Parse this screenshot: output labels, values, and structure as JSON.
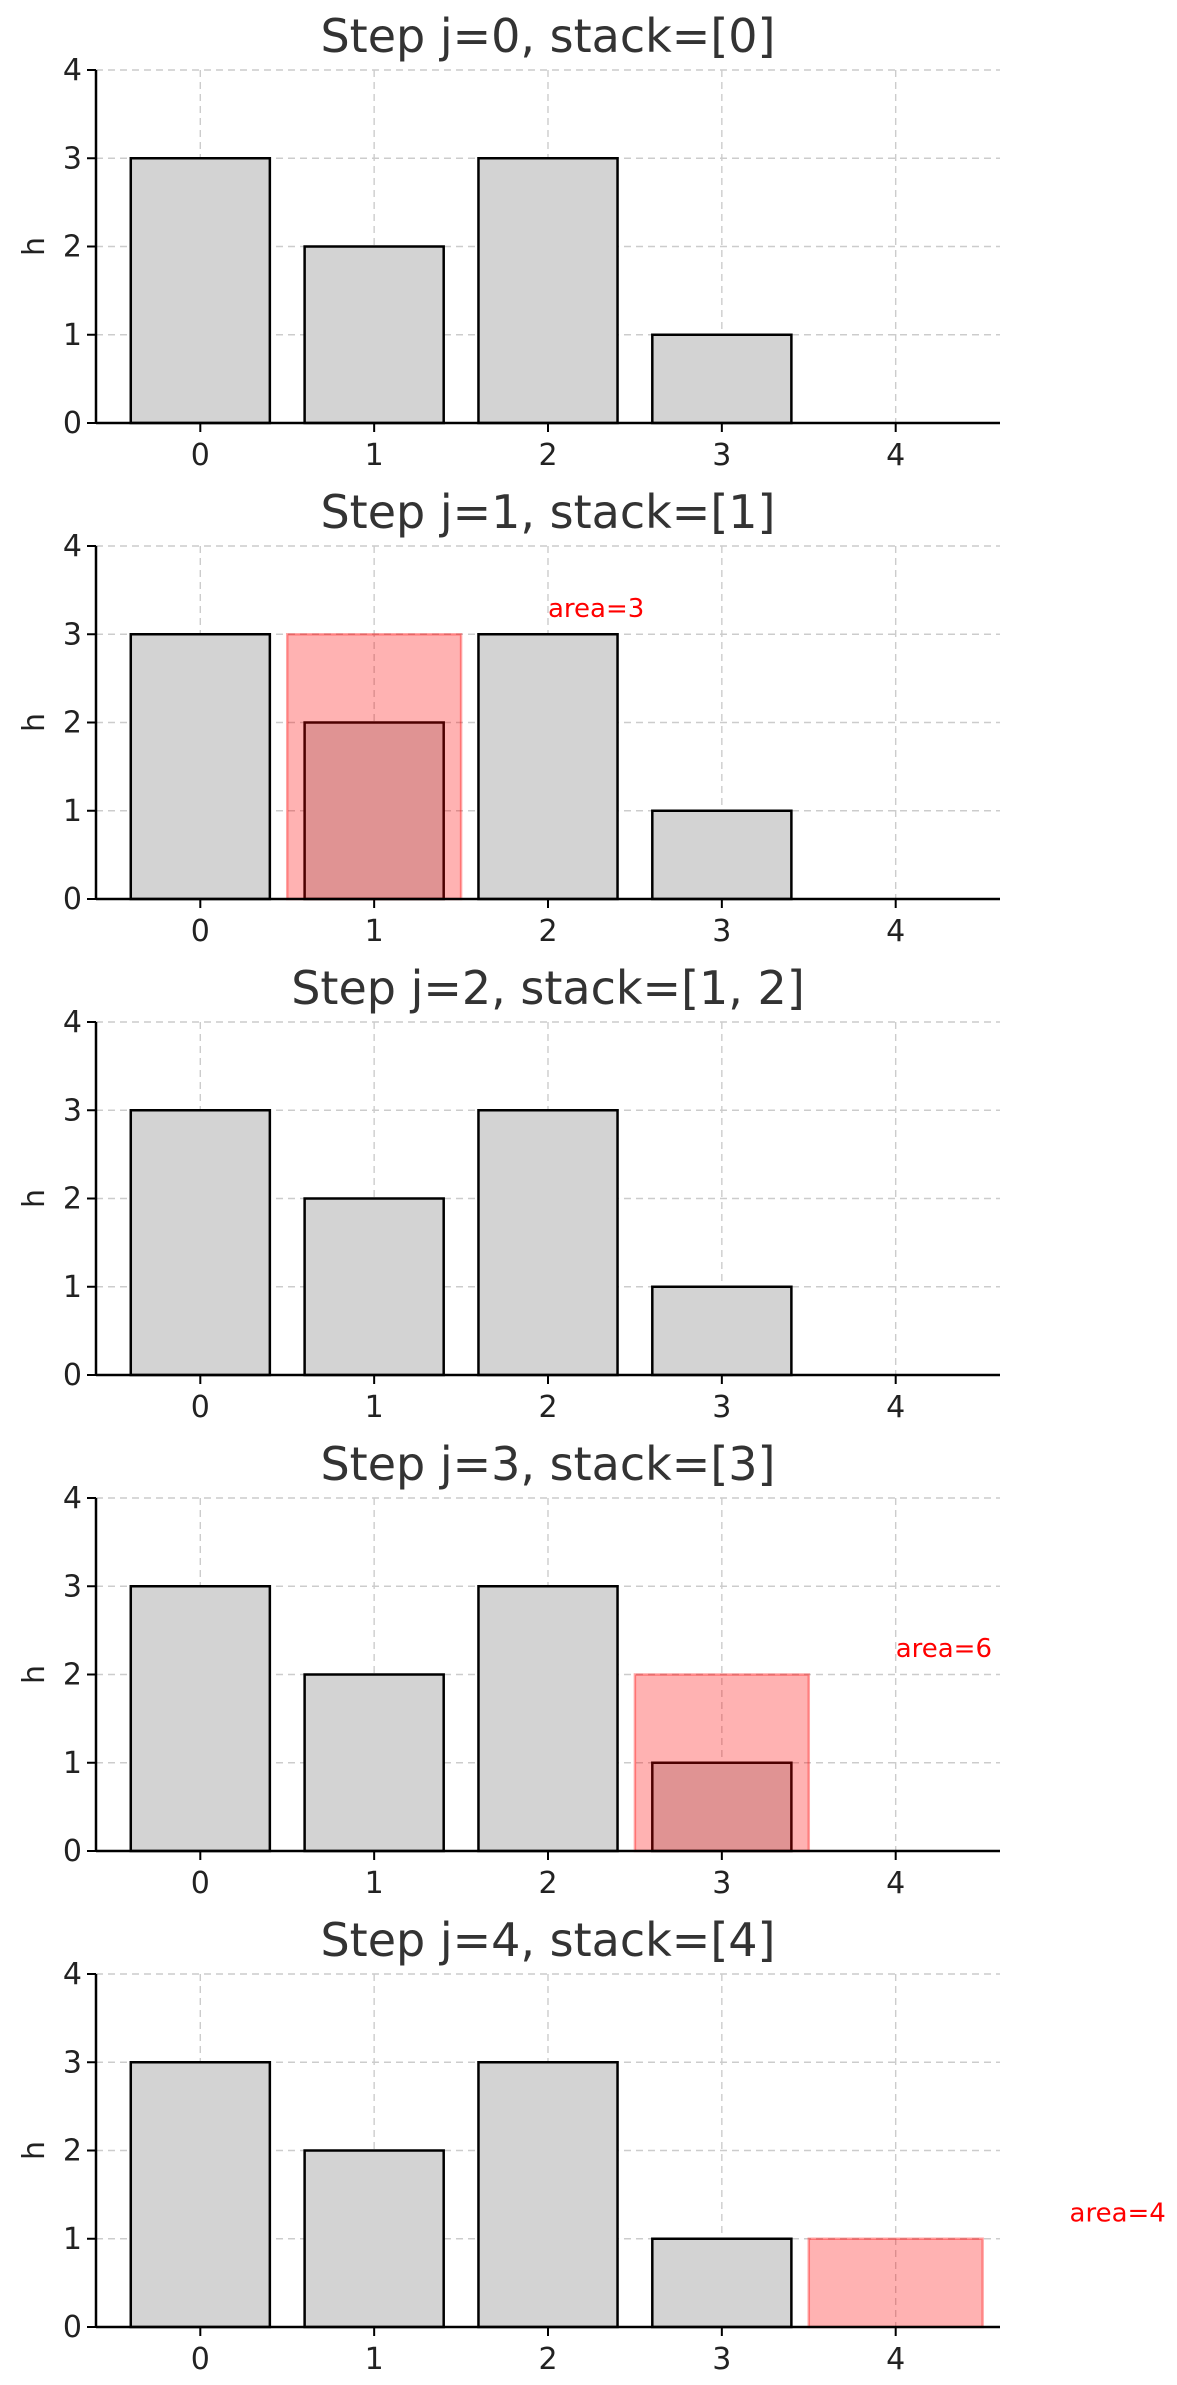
{
  "chart_data": [
    {
      "type": "bar",
      "title": "Step j=0, stack=[0]",
      "ylabel": "h",
      "xlabel": "",
      "categories": [
        "0",
        "1",
        "2",
        "3",
        "4"
      ],
      "values": [
        3,
        2,
        3,
        1,
        0
      ],
      "ylim": [
        0,
        4
      ],
      "yticks": [
        "0",
        "1",
        "2",
        "3",
        "4"
      ],
      "grid": true,
      "highlight": null
    },
    {
      "type": "bar",
      "title": "Step j=1, stack=[1]",
      "ylabel": "h",
      "xlabel": "",
      "categories": [
        "0",
        "1",
        "2",
        "3",
        "4"
      ],
      "values": [
        3,
        2,
        3,
        1,
        0
      ],
      "ylim": [
        0,
        4
      ],
      "yticks": [
        "0",
        "1",
        "2",
        "3",
        "4"
      ],
      "grid": true,
      "highlight": {
        "x_start": 0.5,
        "x_end": 1.5,
        "height": 3,
        "label": "area=3",
        "label_x": 2.0,
        "label_y": 3.3
      }
    },
    {
      "type": "bar",
      "title": "Step j=2, stack=[1, 2]",
      "ylabel": "h",
      "xlabel": "",
      "categories": [
        "0",
        "1",
        "2",
        "3",
        "4"
      ],
      "values": [
        3,
        2,
        3,
        1,
        0
      ],
      "ylim": [
        0,
        4
      ],
      "yticks": [
        "0",
        "1",
        "2",
        "3",
        "4"
      ],
      "grid": true,
      "highlight": null
    },
    {
      "type": "bar",
      "title": "Step j=3, stack=[3]",
      "ylabel": "h",
      "xlabel": "",
      "categories": [
        "0",
        "1",
        "2",
        "3",
        "4"
      ],
      "values": [
        3,
        2,
        3,
        1,
        0
      ],
      "ylim": [
        0,
        4
      ],
      "yticks": [
        "0",
        "1",
        "2",
        "3",
        "4"
      ],
      "grid": true,
      "highlight": {
        "x_start": 2.5,
        "x_end": 3.5,
        "height": 2,
        "label": "area=6",
        "label_x": 4.0,
        "label_y": 2.3
      }
    },
    {
      "type": "bar",
      "title": "Step j=4, stack=[4]",
      "ylabel": "h",
      "xlabel": "",
      "categories": [
        "0",
        "1",
        "2",
        "3",
        "4"
      ],
      "values": [
        3,
        2,
        3,
        1,
        0
      ],
      "ylim": [
        0,
        4
      ],
      "yticks": [
        "0",
        "1",
        "2",
        "3",
        "4"
      ],
      "grid": true,
      "highlight": {
        "x_start": 3.5,
        "x_end": 4.5,
        "height": 1,
        "label": "area=4",
        "label_x": 5.0,
        "label_y": 1.3
      }
    }
  ]
}
